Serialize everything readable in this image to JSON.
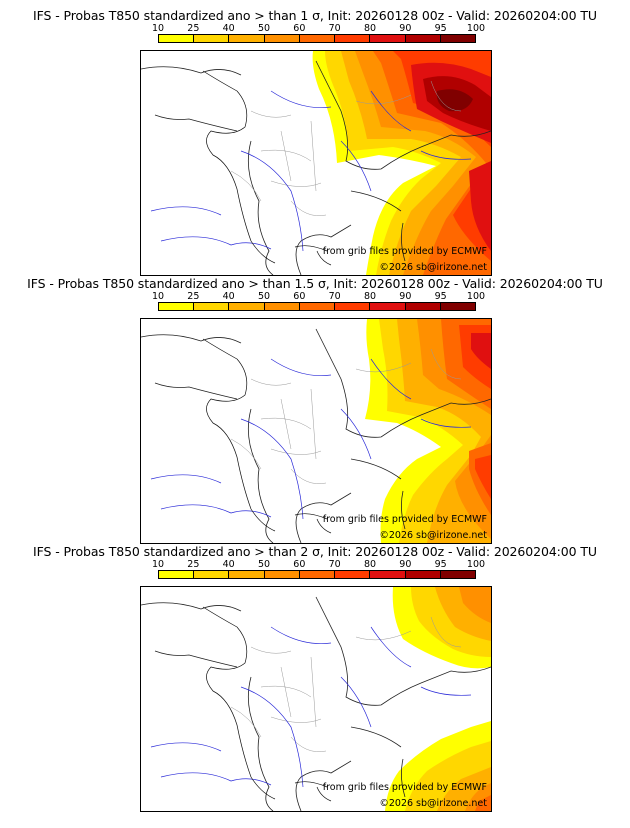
{
  "colorbar": {
    "ticks": [
      "10",
      "25",
      "40",
      "50",
      "60",
      "70",
      "80",
      "90",
      "95",
      "100"
    ],
    "colors": [
      "#ffff00",
      "#ffd700",
      "#ffb000",
      "#ff9000",
      "#ff6800",
      "#ff3c00",
      "#e01010",
      "#b00000",
      "#800000"
    ]
  },
  "panels": [
    {
      "title": "IFS - Probas T850  standardized ano > than 1 σ, Init: 20260128 00z - Valid: 20260204:00 TU",
      "credit_source": "from grib files provided by ECMWF",
      "credit_copyright": "©2026 sb@irizone.net"
    },
    {
      "title": "IFS - Probas T850  standardized ano > than 1.5 σ, Init: 20260128 00z - Valid: 20260204:00 TU",
      "credit_source": "from grib files provided by ECMWF",
      "credit_copyright": "©2026 sb@irizone.net"
    },
    {
      "title": "IFS - Probas T850  standardized ano > than 2 σ, Init: 20260128 00z - Valid: 20260204:00 TU",
      "credit_source": "from grib files provided by ECMWF",
      "credit_copyright": "©2026 sb@irizone.net"
    }
  ]
}
